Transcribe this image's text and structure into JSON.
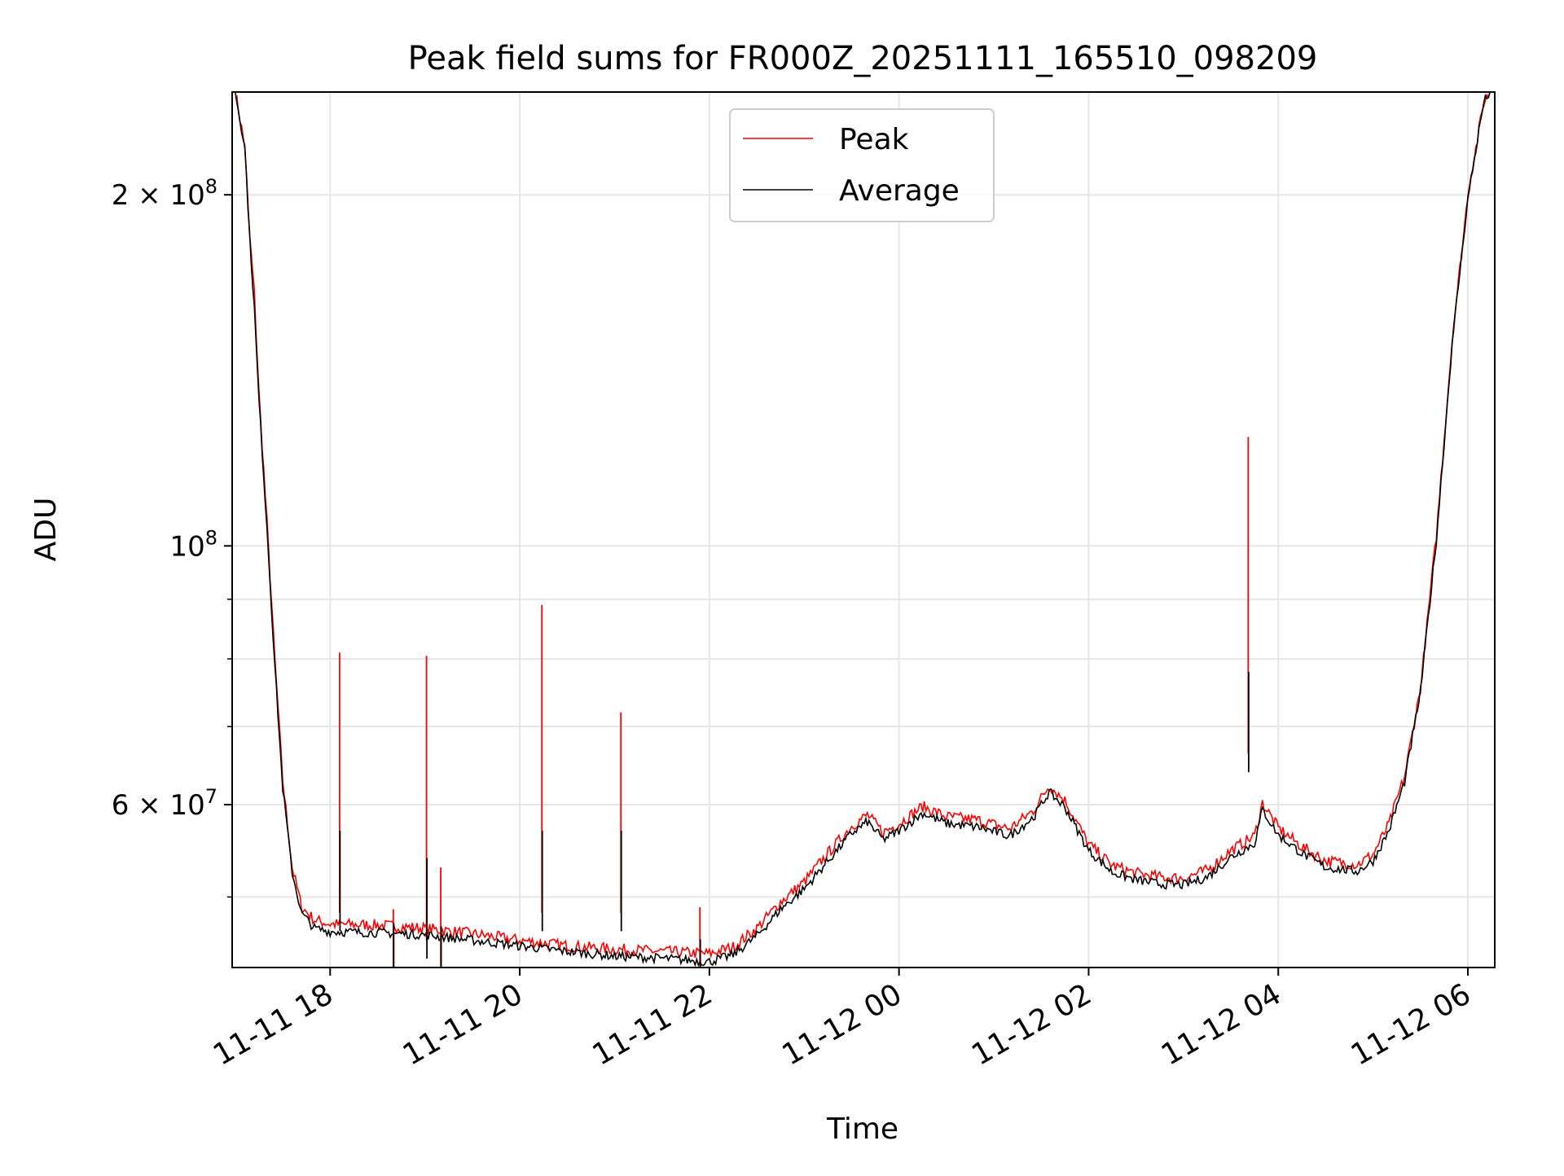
{
  "chart_data": {
    "type": "line",
    "title": "Peak field sums for FR000Z_20251111_165510_098209",
    "xlabel": "Time",
    "ylabel": "ADU",
    "y_scale": "log",
    "xlim": [
      "2025-11-11 16:58",
      "2025-11-12 06:17"
    ],
    "ylim": [
      43500000,
      245000000
    ],
    "x_ticks": [
      "11-11 18",
      "11-11 20",
      "11-11 22",
      "11-12 00",
      "11-12 02",
      "11-12 04",
      "11-12 06"
    ],
    "x_tick_values": [
      "2025-11-11 18:00",
      "2025-11-11 20:00",
      "2025-11-11 22:00",
      "2025-11-12 00:00",
      "2025-11-12 02:00",
      "2025-11-12 04:00",
      "2025-11-12 06:00"
    ],
    "y_major_ticks": [
      {
        "value": 200000000,
        "mantissa": "2",
        "exponent": "8"
      },
      {
        "value": 100000000,
        "mantissa": "",
        "exponent": "8"
      },
      {
        "value": 60000000,
        "mantissa": "6",
        "exponent": "7"
      }
    ],
    "y_minor_gridlines": [
      50000000,
      70000000,
      80000000,
      90000000
    ],
    "grid": true,
    "legend_position": "upper-center",
    "colors": {
      "Peak": "#ff0000",
      "Average": "#000000"
    },
    "series": [
      {
        "name": "Peak",
        "points": [
          [
            "2025-11-11 17:00",
            245000000
          ],
          [
            "2025-11-11 17:06",
            220000000
          ],
          [
            "2025-11-11 17:09",
            185000000
          ],
          [
            "2025-11-11 17:12",
            165000000
          ],
          [
            "2025-11-11 17:15",
            135000000
          ],
          [
            "2025-11-11 17:20",
            105000000
          ],
          [
            "2025-11-11 17:25",
            80000000
          ],
          [
            "2025-11-11 17:30",
            63000000
          ],
          [
            "2025-11-11 17:36",
            53000000
          ],
          [
            "2025-11-11 17:42",
            49000000
          ],
          [
            "2025-11-11 17:50",
            47800000
          ],
          [
            "2025-11-11 18:00",
            47400000
          ],
          [
            "2025-11-11 18:30",
            47300000
          ],
          [
            "2025-11-11 19:00",
            47000000
          ],
          [
            "2025-11-11 19:30",
            46500000
          ],
          [
            "2025-11-11 20:00",
            45900000
          ],
          [
            "2025-11-11 20:30",
            45400000
          ],
          [
            "2025-11-11 21:00",
            45100000
          ],
          [
            "2025-11-11 21:30",
            44900000
          ],
          [
            "2025-11-11 22:00",
            44700000
          ],
          [
            "2025-11-11 22:15",
            45300000
          ],
          [
            "2025-11-11 22:30",
            47000000
          ],
          [
            "2025-11-11 22:45",
            49500000
          ],
          [
            "2025-11-11 23:00",
            51500000
          ],
          [
            "2025-11-11 23:15",
            54500000
          ],
          [
            "2025-11-11 23:30",
            57500000
          ],
          [
            "2025-11-11 23:40",
            58800000
          ],
          [
            "2025-11-11 23:50",
            56800000
          ],
          [
            "2025-11-12 00:00",
            57800000
          ],
          [
            "2025-11-12 00:15",
            59800000
          ],
          [
            "2025-11-12 00:30",
            58600000
          ],
          [
            "2025-11-12 00:50",
            58200000
          ],
          [
            "2025-11-12 01:10",
            57200000
          ],
          [
            "2025-11-12 01:25",
            59300000
          ],
          [
            "2025-11-12 01:35",
            62300000
          ],
          [
            "2025-11-12 01:45",
            60500000
          ],
          [
            "2025-11-12 02:00",
            55500000
          ],
          [
            "2025-11-12 02:15",
            53200000
          ],
          [
            "2025-11-12 02:30",
            52400000
          ],
          [
            "2025-11-12 02:45",
            52000000
          ],
          [
            "2025-11-12 03:00",
            51900000
          ],
          [
            "2025-11-12 03:15",
            52700000
          ],
          [
            "2025-11-12 03:30",
            54800000
          ],
          [
            "2025-11-12 03:45",
            56400000
          ],
          [
            "2025-11-12 03:50",
            60200000
          ],
          [
            "2025-11-12 04:00",
            57300000
          ],
          [
            "2025-11-12 04:15",
            55200000
          ],
          [
            "2025-11-12 04:30",
            53700000
          ],
          [
            "2025-11-12 04:50",
            53300000
          ],
          [
            "2025-11-12 05:00",
            54400000
          ],
          [
            "2025-11-12 05:10",
            57700000
          ],
          [
            "2025-11-12 05:20",
            63500000
          ],
          [
            "2025-11-12 05:30",
            75500000
          ],
          [
            "2025-11-12 05:40",
            102000000
          ],
          [
            "2025-11-12 05:50",
            150000000
          ],
          [
            "2025-11-12 06:00",
            200000000
          ],
          [
            "2025-11-12 06:10",
            240000000
          ],
          [
            "2025-11-12 06:14",
            245000000
          ]
        ]
      },
      {
        "name": "Average",
        "points": [
          [
            "2025-11-11 17:00",
            245000000
          ],
          [
            "2025-11-11 17:06",
            220000000
          ],
          [
            "2025-11-11 17:09",
            185000000
          ],
          [
            "2025-11-11 17:12",
            160000000
          ],
          [
            "2025-11-11 17:15",
            133000000
          ],
          [
            "2025-11-11 17:20",
            104000000
          ],
          [
            "2025-11-11 17:25",
            79000000
          ],
          [
            "2025-11-11 17:30",
            62000000
          ],
          [
            "2025-11-11 17:36",
            52500000
          ],
          [
            "2025-11-11 17:42",
            48400000
          ],
          [
            "2025-11-11 17:50",
            47000000
          ],
          [
            "2025-11-11 18:00",
            46700000
          ],
          [
            "2025-11-11 18:30",
            46600000
          ],
          [
            "2025-11-11 19:00",
            46400000
          ],
          [
            "2025-11-11 19:30",
            45900000
          ],
          [
            "2025-11-11 20:00",
            45400000
          ],
          [
            "2025-11-11 20:30",
            44900000
          ],
          [
            "2025-11-11 21:00",
            44500000
          ],
          [
            "2025-11-11 21:30",
            44300000
          ],
          [
            "2025-11-11 22:00",
            44000000
          ],
          [
            "2025-11-11 22:15",
            44600000
          ],
          [
            "2025-11-11 22:30",
            46300000
          ],
          [
            "2025-11-11 22:45",
            48800000
          ],
          [
            "2025-11-11 23:00",
            50800000
          ],
          [
            "2025-11-11 23:15",
            53700000
          ],
          [
            "2025-11-11 23:30",
            56700000
          ],
          [
            "2025-11-11 23:40",
            58000000
          ],
          [
            "2025-11-11 23:50",
            56000000
          ],
          [
            "2025-11-12 00:00",
            57000000
          ],
          [
            "2025-11-12 00:15",
            59000000
          ],
          [
            "2025-11-12 00:30",
            57800000
          ],
          [
            "2025-11-12 00:50",
            57400000
          ],
          [
            "2025-11-12 01:10",
            56400000
          ],
          [
            "2025-11-12 01:25",
            58500000
          ],
          [
            "2025-11-12 01:35",
            61500000
          ],
          [
            "2025-11-12 01:45",
            59700000
          ],
          [
            "2025-11-12 02:00",
            54800000
          ],
          [
            "2025-11-12 02:15",
            52500000
          ],
          [
            "2025-11-12 02:30",
            51700000
          ],
          [
            "2025-11-12 02:45",
            51300000
          ],
          [
            "2025-11-12 03:00",
            51200000
          ],
          [
            "2025-11-12 03:15",
            52000000
          ],
          [
            "2025-11-12 03:30",
            54100000
          ],
          [
            "2025-11-12 03:45",
            55600000
          ],
          [
            "2025-11-12 03:50",
            59400000
          ],
          [
            "2025-11-12 04:00",
            56500000
          ],
          [
            "2025-11-12 04:15",
            54500000
          ],
          [
            "2025-11-12 04:30",
            53000000
          ],
          [
            "2025-11-12 04:50",
            52600000
          ],
          [
            "2025-11-12 05:00",
            53700000
          ],
          [
            "2025-11-12 05:10",
            57000000
          ],
          [
            "2025-11-12 05:20",
            62800000
          ],
          [
            "2025-11-12 05:30",
            75000000
          ],
          [
            "2025-11-12 05:40",
            101000000
          ],
          [
            "2025-11-12 05:50",
            149000000
          ],
          [
            "2025-11-12 06:00",
            199000000
          ],
          [
            "2025-11-12 06:10",
            240000000
          ],
          [
            "2025-11-12 06:14",
            245000000
          ]
        ],
        "spikes": [
          {
            "x": "2025-11-11 18:06",
            "peak": 81000000,
            "average": 57000000
          },
          {
            "x": "2025-11-11 18:40",
            "peak": 48800000,
            "average": 47500000
          },
          {
            "x": "2025-11-11 19:01",
            "peak": 80500000,
            "average": 54000000
          },
          {
            "x": "2025-11-11 19:10",
            "peak": 53000000,
            "average": 47200000
          },
          {
            "x": "2025-11-11 20:14",
            "peak": 89000000,
            "average": 57000000
          },
          {
            "x": "2025-11-11 21:04",
            "peak": 72000000,
            "average": 57000000
          },
          {
            "x": "2025-11-11 21:54",
            "peak": 49000000,
            "average": 46000000
          },
          {
            "x": "2025-11-12 03:41",
            "peak": 124000000,
            "average": 78000000
          }
        ]
      }
    ]
  }
}
